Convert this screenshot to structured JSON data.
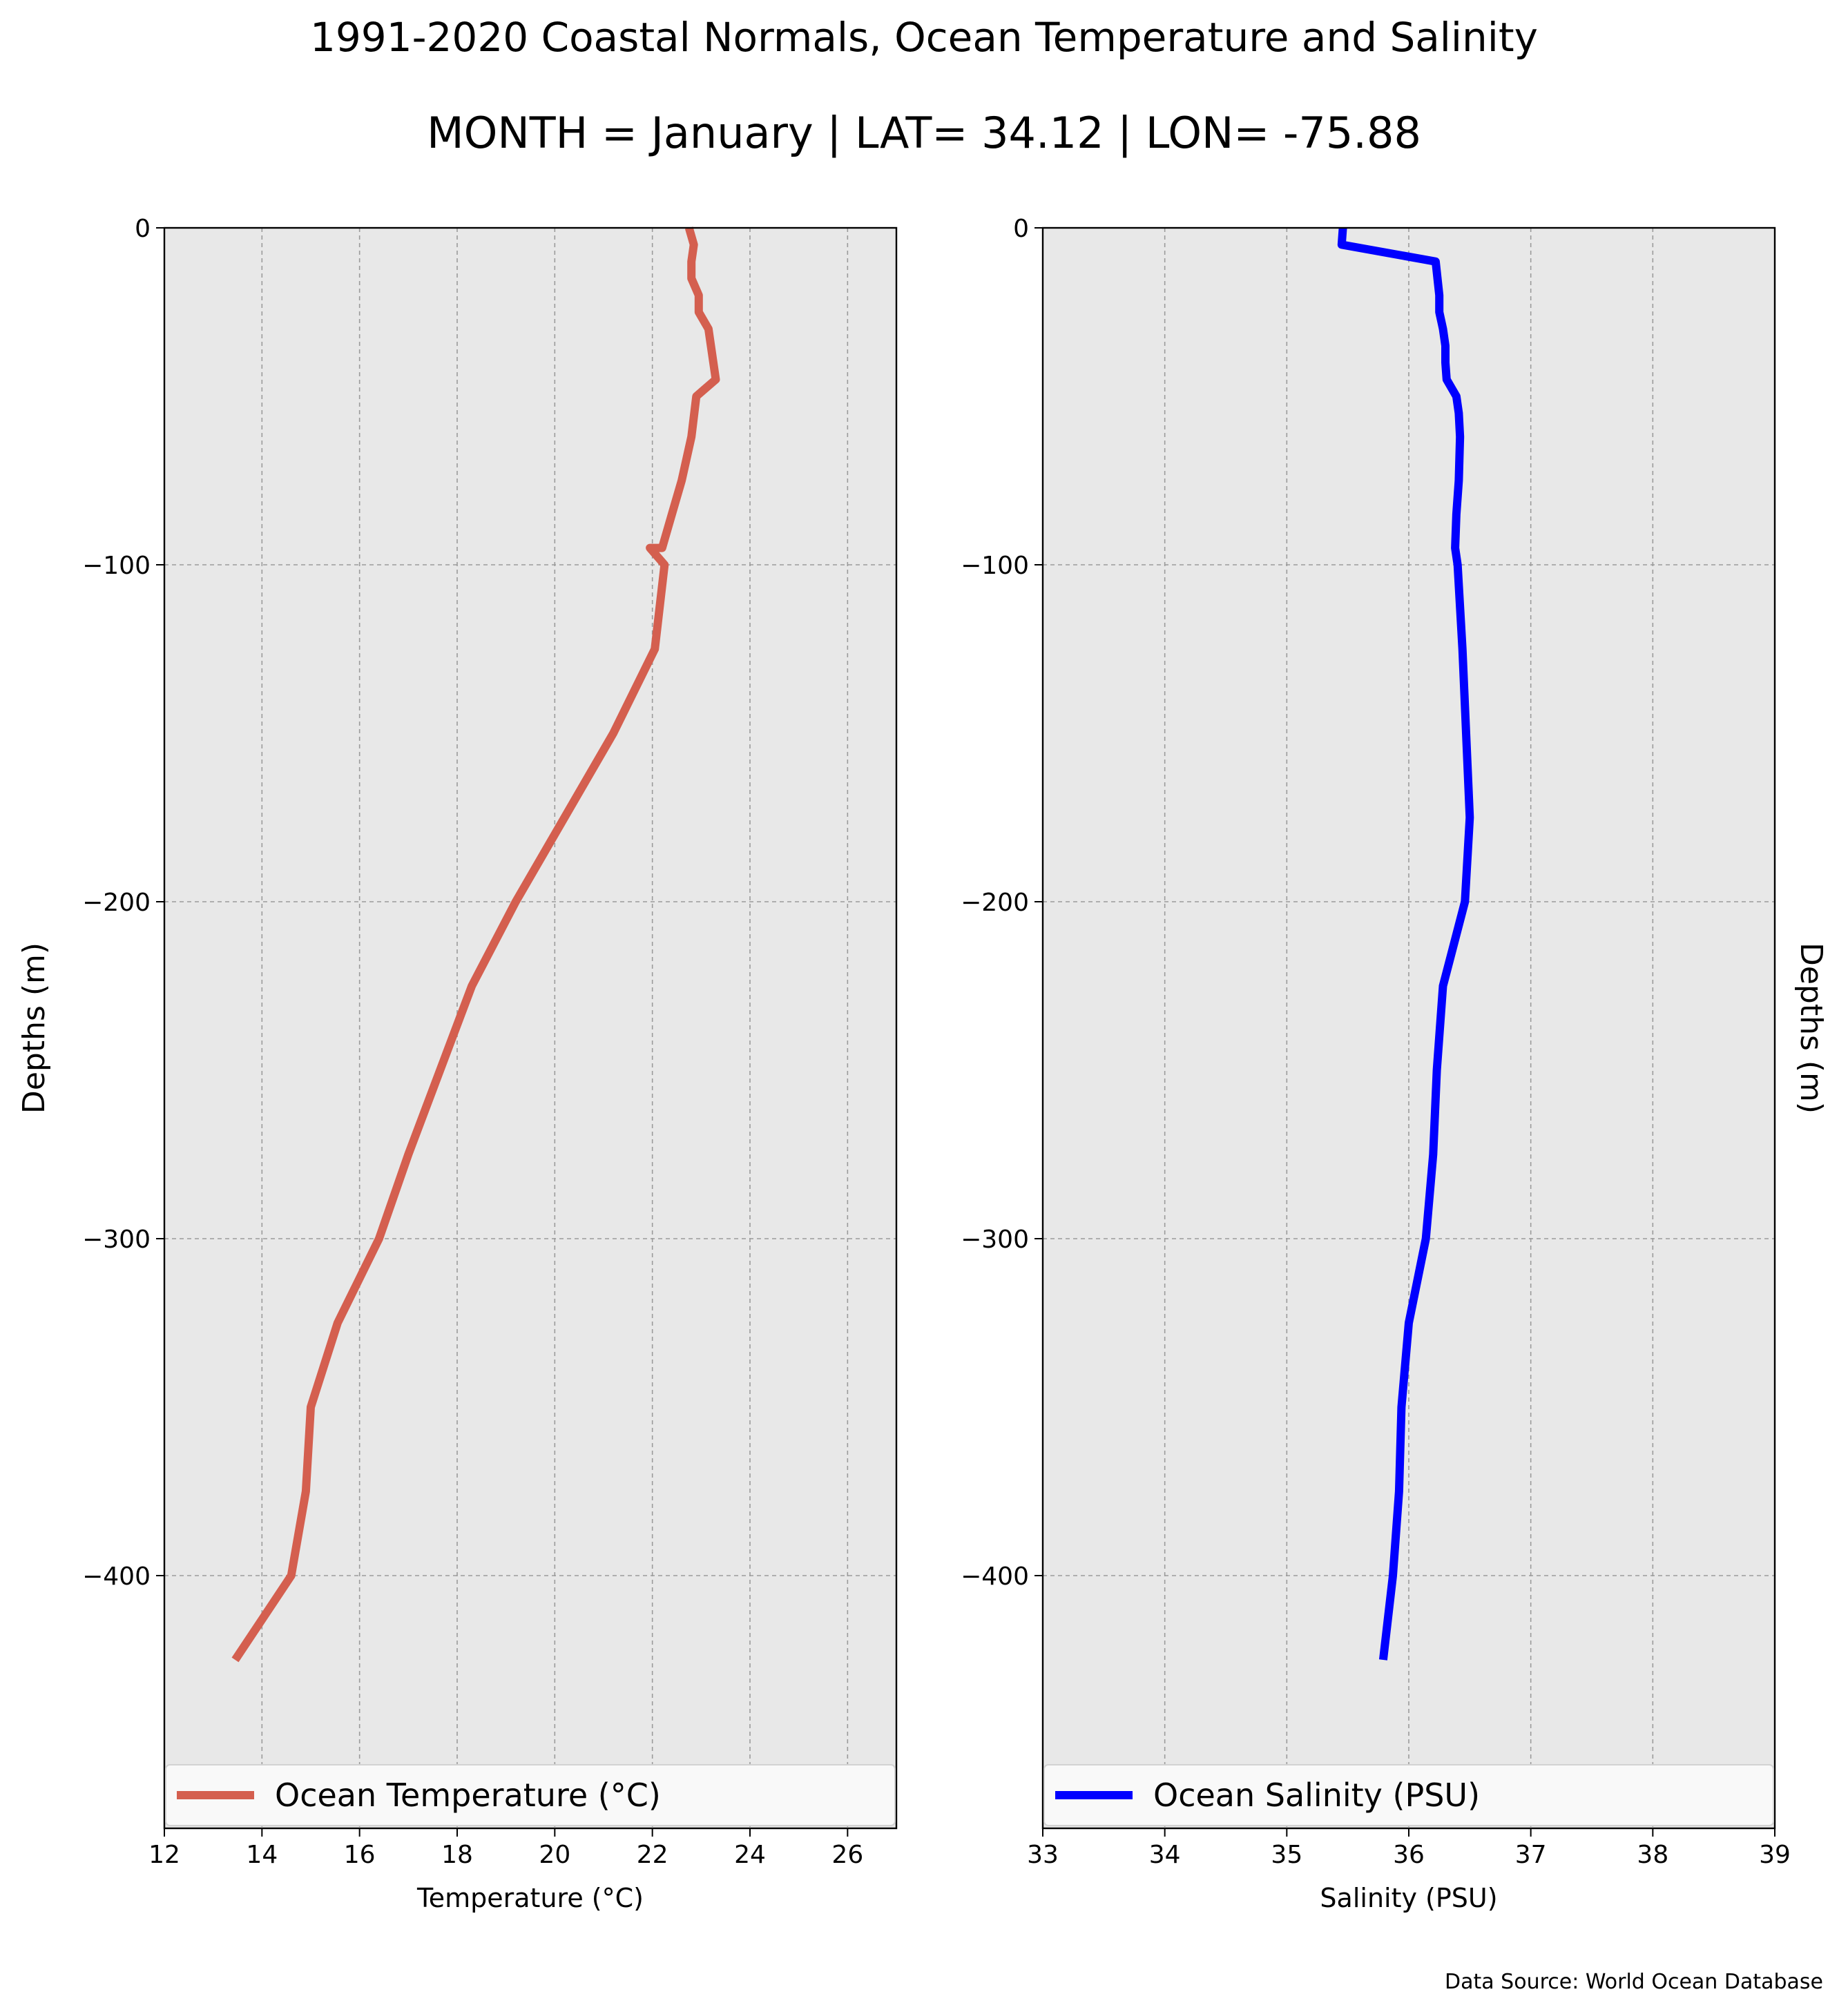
{
  "figure": {
    "title": "1991-2020 Coastal Normals, Ocean Temperature and Salinity",
    "subtitle": "MONTH = January | LAT= 34.12 | LON= -75.88",
    "source": "Data Source: World Ocean Database"
  },
  "chart_data": [
    {
      "type": "line",
      "orientation": "x-value vs depth",
      "xlabel": "Temperature (°C)",
      "ylabel": "Depths (m)",
      "xlim": [
        12,
        27
      ],
      "ylim": [
        -475,
        0
      ],
      "xticks": [
        12,
        14,
        16,
        18,
        20,
        22,
        24,
        26
      ],
      "xtick_labels": [
        "12",
        "14",
        "16",
        "18",
        "20",
        "22",
        "24",
        "26"
      ],
      "yticks": [
        0,
        -100,
        -200,
        -300,
        -400
      ],
      "ytick_labels": [
        "0",
        "−100",
        "−200",
        "−300",
        "−400"
      ],
      "grid": true,
      "legend": "lower-center",
      "series": [
        {
          "name": "Ocean Temperature (°C)",
          "color": "#d45f4f",
          "x": [
            22.75,
            22.85,
            22.8,
            22.8,
            22.95,
            22.95,
            23.15,
            23.3,
            22.9,
            22.8,
            22.6,
            22.4,
            22.2,
            21.95,
            22.25,
            22.05,
            21.2,
            19.2,
            18.3,
            17.0,
            16.4,
            15.55,
            15.0,
            14.9,
            14.6,
            13.45
          ],
          "y": [
            0,
            -5,
            -10,
            -15,
            -20,
            -25,
            -30,
            -45,
            -50,
            -62,
            -75,
            -85,
            -95,
            -95,
            -100,
            -125,
            -150,
            -200,
            -225,
            -275,
            -300,
            -325,
            -350,
            -375,
            -400,
            -425
          ]
        }
      ]
    },
    {
      "type": "line",
      "orientation": "x-value vs depth",
      "xlabel": "Salinity (PSU)",
      "ylabel": "Depths (m)",
      "xlim": [
        33,
        39
      ],
      "ylim": [
        -475,
        0
      ],
      "xticks": [
        33,
        34,
        35,
        36,
        37,
        38,
        39
      ],
      "xtick_labels": [
        "33",
        "34",
        "35",
        "36",
        "37",
        "38",
        "39"
      ],
      "yticks": [
        0,
        -100,
        -200,
        -300,
        -400
      ],
      "ytick_labels": [
        "0",
        "−100",
        "−200",
        "−300",
        "−400"
      ],
      "grid": true,
      "legend": "lower-center",
      "series": [
        {
          "name": "Ocean Salinity (PSU)",
          "color": "#0000ff",
          "x": [
            35.46,
            35.45,
            36.22,
            36.25,
            36.25,
            36.28,
            36.3,
            36.3,
            36.31,
            36.39,
            36.41,
            36.42,
            36.41,
            36.39,
            36.38,
            36.4,
            36.44,
            36.47,
            36.5,
            36.46,
            36.28,
            36.23,
            36.2,
            36.14,
            36.0,
            35.94,
            35.92,
            35.87,
            35.79
          ],
          "y": [
            0,
            -5,
            -10,
            -20,
            -25,
            -30,
            -35,
            -40,
            -45,
            -50,
            -55,
            -62,
            -75,
            -85,
            -95,
            -100,
            -125,
            -150,
            -175,
            -200,
            -225,
            -250,
            -275,
            -300,
            -325,
            -350,
            -375,
            -400,
            -425
          ]
        }
      ]
    }
  ]
}
